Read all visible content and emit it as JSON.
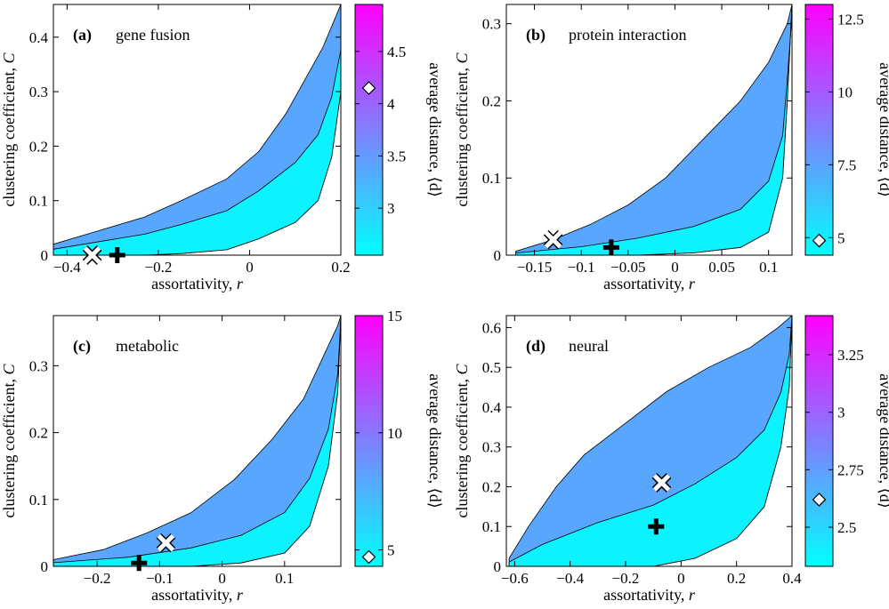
{
  "figure": {
    "xlabel_text": "assortativity, ",
    "xlabel_var": "r",
    "ylabel_text": "clustering coefficient, ",
    "ylabel_var": "C",
    "colorbar_label": "average distance, ⟨d⟩"
  },
  "chart_data": [
    {
      "type": "contour",
      "panel": "(a)",
      "title": "gene fusion",
      "xlabel": "assortativity, r",
      "ylabel": "clustering coefficient, C",
      "xlim": [
        -0.43,
        0.2
      ],
      "ylim": [
        0,
        0.46
      ],
      "xticks": [
        -0.4,
        -0.2,
        0,
        0.2
      ],
      "xtick_labels": [
        "−0.4",
        "−0.2",
        "0",
        "0.2"
      ],
      "yticks": [
        0,
        0.1,
        0.2,
        0.3,
        0.4
      ],
      "ytick_labels": [
        "0",
        "0.1",
        "0.2",
        "0.3",
        "0.4"
      ],
      "colorbar_range": [
        2.55,
        4.95
      ],
      "colorbar_ticks": [
        3,
        3.5,
        4,
        4.5
      ],
      "colorbar_tick_labels": [
        "3",
        "3.5",
        "4",
        "4.5"
      ],
      "colorbar_marker": 4.15,
      "region_lower": [
        [
          -0.43,
          0.0
        ],
        [
          -0.33,
          0.0
        ],
        [
          -0.23,
          0.0
        ],
        [
          -0.15,
          0.003
        ],
        [
          -0.05,
          0.01
        ],
        [
          0.02,
          0.03
        ],
        [
          0.1,
          0.06
        ],
        [
          0.15,
          0.1
        ],
        [
          0.18,
          0.18
        ],
        [
          0.2,
          0.3
        ],
        [
          0.2,
          0.46
        ]
      ],
      "region_upper": [
        [
          -0.43,
          0.02
        ],
        [
          -0.33,
          0.045
        ],
        [
          -0.23,
          0.07
        ],
        [
          -0.15,
          0.1
        ],
        [
          -0.05,
          0.14
        ],
        [
          0.02,
          0.19
        ],
        [
          0.08,
          0.26
        ],
        [
          0.12,
          0.32
        ],
        [
          0.16,
          0.38
        ],
        [
          0.19,
          0.44
        ],
        [
          0.2,
          0.46
        ]
      ],
      "markers": [
        {
          "type": "cross",
          "label": "✖",
          "x": -0.345,
          "y": 0.0
        },
        {
          "type": "plus",
          "label": "✚",
          "x": -0.29,
          "y": 0.0
        }
      ]
    },
    {
      "type": "contour",
      "panel": "(b)",
      "title": "protein interaction",
      "xlabel": "assortativity, r",
      "ylabel": "clustering coefficient, C",
      "xlim": [
        -0.18,
        0.125
      ],
      "ylim": [
        0,
        0.325
      ],
      "xticks": [
        -0.15,
        -0.1,
        -0.05,
        0,
        0.05,
        0.1
      ],
      "xtick_labels": [
        "−0.15",
        "−0.1",
        "−0.05",
        "0",
        "0.05",
        "0.1"
      ],
      "yticks": [
        0,
        0.1,
        0.2,
        0.3
      ],
      "ytick_labels": [
        "0",
        "0.1",
        "0.2",
        "0.3"
      ],
      "colorbar_range": [
        4.4,
        13.0
      ],
      "colorbar_ticks": [
        5,
        7.5,
        10,
        12.5
      ],
      "colorbar_tick_labels": [
        "5",
        "7.5",
        "10",
        "12.5"
      ],
      "colorbar_marker": 4.9,
      "region_lower": [
        [
          -0.17,
          0.0
        ],
        [
          -0.1,
          0.0
        ],
        [
          -0.04,
          0.0
        ],
        [
          0.02,
          0.003
        ],
        [
          0.07,
          0.01
        ],
        [
          0.1,
          0.03
        ],
        [
          0.115,
          0.1
        ],
        [
          0.12,
          0.2
        ],
        [
          0.125,
          0.325
        ]
      ],
      "region_upper": [
        [
          -0.17,
          0.005
        ],
        [
          -0.13,
          0.02
        ],
        [
          -0.09,
          0.04
        ],
        [
          -0.05,
          0.065
        ],
        [
          -0.01,
          0.1
        ],
        [
          0.03,
          0.15
        ],
        [
          0.07,
          0.2
        ],
        [
          0.1,
          0.25
        ],
        [
          0.12,
          0.3
        ],
        [
          0.125,
          0.325
        ]
      ],
      "markers": [
        {
          "type": "cross",
          "label": "✖",
          "x": -0.13,
          "y": 0.02
        },
        {
          "type": "plus",
          "label": "✚",
          "x": -0.068,
          "y": 0.01
        }
      ]
    },
    {
      "type": "contour",
      "panel": "(c)",
      "title": "metabolic",
      "xlabel": "assortativity, r",
      "ylabel": "clustering coefficient, C",
      "xlim": [
        -0.27,
        0.19
      ],
      "ylim": [
        0,
        0.375
      ],
      "xticks": [
        -0.2,
        -0.1,
        0,
        0.1
      ],
      "xtick_labels": [
        "−0.2",
        "−0.1",
        "0",
        "0.1"
      ],
      "yticks": [
        0,
        0.1,
        0.2,
        0.3
      ],
      "ytick_labels": [
        "0",
        "0.1",
        "0.2",
        "0.3"
      ],
      "colorbar_range": [
        4.3,
        15.0
      ],
      "colorbar_ticks": [
        5,
        10,
        15
      ],
      "colorbar_tick_labels": [
        "5",
        "10",
        "15"
      ],
      "colorbar_marker": 4.7,
      "region_lower": [
        [
          -0.27,
          0.0
        ],
        [
          -0.15,
          0.0
        ],
        [
          -0.05,
          0.0
        ],
        [
          0.03,
          0.005
        ],
        [
          0.1,
          0.02
        ],
        [
          0.14,
          0.06
        ],
        [
          0.17,
          0.15
        ],
        [
          0.185,
          0.26
        ],
        [
          0.19,
          0.375
        ]
      ],
      "region_upper": [
        [
          -0.27,
          0.01
        ],
        [
          -0.19,
          0.025
        ],
        [
          -0.12,
          0.05
        ],
        [
          -0.05,
          0.08
        ],
        [
          0.02,
          0.13
        ],
        [
          0.08,
          0.19
        ],
        [
          0.13,
          0.25
        ],
        [
          0.16,
          0.31
        ],
        [
          0.185,
          0.36
        ],
        [
          0.19,
          0.375
        ]
      ],
      "markers": [
        {
          "type": "cross",
          "label": "✖",
          "x": -0.09,
          "y": 0.035
        },
        {
          "type": "plus",
          "label": "✚",
          "x": -0.133,
          "y": 0.005
        }
      ]
    },
    {
      "type": "contour",
      "panel": "(d)",
      "title": "neural",
      "xlabel": "assortativity, r",
      "ylabel": "clustering coefficient, C",
      "xlim": [
        -0.63,
        0.4
      ],
      "ylim": [
        0,
        0.63
      ],
      "xticks": [
        -0.6,
        -0.4,
        -0.2,
        0,
        0.2,
        0.4
      ],
      "xtick_labels": [
        "−0.6",
        "−0.4",
        "−0.2",
        "0",
        "0.2",
        "0.4"
      ],
      "yticks": [
        0,
        0.1,
        0.2,
        0.3,
        0.4,
        0.5,
        0.6
      ],
      "ytick_labels": [
        "0",
        "0.1",
        "0.2",
        "0.3",
        "0.4",
        "0.5",
        "0.6"
      ],
      "colorbar_range": [
        2.33,
        3.42
      ],
      "colorbar_ticks": [
        2.5,
        2.75,
        3,
        3.25
      ],
      "colorbar_tick_labels": [
        "2.5",
        "2.75",
        "3",
        "3.25"
      ],
      "colorbar_marker": 2.62,
      "region_lower": [
        [
          -0.62,
          0.0
        ],
        [
          -0.5,
          0.0
        ],
        [
          -0.3,
          0.0
        ],
        [
          -0.1,
          0.0
        ],
        [
          0.05,
          0.02
        ],
        [
          0.2,
          0.07
        ],
        [
          0.3,
          0.15
        ],
        [
          0.36,
          0.3
        ],
        [
          0.39,
          0.45
        ],
        [
          0.4,
          0.63
        ]
      ],
      "region_upper": [
        [
          -0.62,
          0.02
        ],
        [
          -0.55,
          0.1
        ],
        [
          -0.45,
          0.2
        ],
        [
          -0.35,
          0.28
        ],
        [
          -0.2,
          0.36
        ],
        [
          -0.05,
          0.44
        ],
        [
          0.1,
          0.5
        ],
        [
          0.25,
          0.55
        ],
        [
          0.35,
          0.6
        ],
        [
          0.4,
          0.63
        ]
      ],
      "markers": [
        {
          "type": "cross",
          "label": "✖",
          "x": -0.07,
          "y": 0.21
        },
        {
          "type": "plus",
          "label": "✚",
          "x": -0.09,
          "y": 0.1
        }
      ]
    }
  ]
}
